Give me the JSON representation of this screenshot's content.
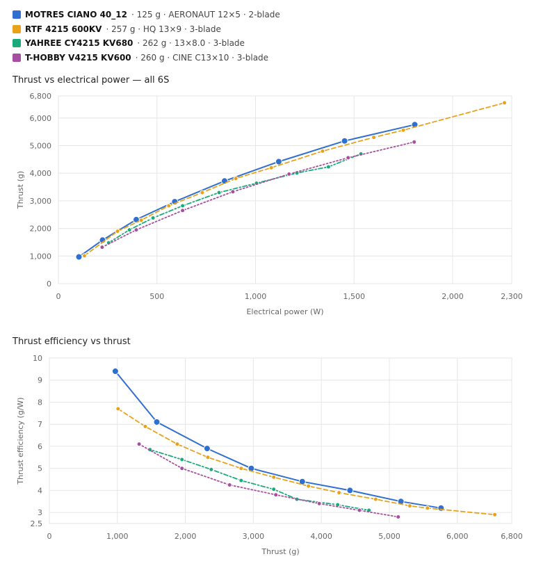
{
  "legend": [
    {
      "name": "MOTRES CIANO 40_12",
      "desc": "· 125 g · AERONAUT 12×5 · 2-blade",
      "color": "#2f6fcf",
      "dash": "solid"
    },
    {
      "name": "RTF 4215 600KV",
      "desc": "· 257 g · HQ 13×9 · 3-blade",
      "color": "#e8a21a",
      "dash": "dashed"
    },
    {
      "name": "YAHREE CY4215 KV680",
      "desc": "· 262 g · 13×8.0 · 3-blade",
      "color": "#1bab7a",
      "dash": "dash-dot"
    },
    {
      "name": "T-HOBBY V4215 KV600",
      "desc": "· 260 g · CINE C13×10 · 3-blade",
      "color": "#a64fa0",
      "dash": "dotted"
    }
  ],
  "chart_data": [
    {
      "type": "line",
      "title": "Thrust vs electrical power — all 6S",
      "xlabel": "Electrical power (W)",
      "ylabel": "Thrust (g)",
      "xlim": [
        0,
        2300
      ],
      "ylim": [
        0,
        6800
      ],
      "xticks": [
        0,
        500,
        1000,
        1500,
        2000,
        2300
      ],
      "xtick_labels": [
        "0",
        "500",
        "1,000",
        "1,500",
        "2,000",
        "2,300"
      ],
      "yticks": [
        0,
        1000,
        2000,
        3000,
        4000,
        5000,
        6000,
        6800
      ],
      "ytick_labels": [
        "0",
        "1,000",
        "2,000",
        "3,000",
        "4,000",
        "5,000",
        "6,000",
        "6,800"
      ],
      "grid": true,
      "series": [
        {
          "name": "MOTRES CIANO 40_12",
          "x": [
            104,
            224,
            395,
            590,
            843,
            1118,
            1452,
            1808
          ],
          "y": [
            970,
            1580,
            2320,
            2970,
            3720,
            4420,
            5170,
            5760
          ]
        },
        {
          "name": "RTF 4215 600KV",
          "x": [
            132,
            300,
            420,
            560,
            730,
            900,
            1080,
            1340,
            1600,
            1750,
            2263
          ],
          "y": [
            1010,
            1900,
            2300,
            2820,
            3300,
            3810,
            4200,
            4800,
            5300,
            5560,
            6550
          ]
        },
        {
          "name": "YAHREE CY4215 KV680",
          "x": [
            255,
            360,
            480,
            630,
            815,
            1005,
            1210,
            1370,
            1535
          ],
          "y": [
            1480,
            1950,
            2380,
            2820,
            3300,
            3640,
            4010,
            4230,
            4700
          ]
        },
        {
          "name": "T-HOBBY V4215 KV600",
          "x": [
            222,
            395,
            630,
            885,
            1170,
            1470,
            1805
          ],
          "y": [
            1320,
            1950,
            2650,
            3330,
            3970,
            4560,
            5130
          ]
        }
      ]
    },
    {
      "type": "line",
      "title": "Thrust efficiency vs thrust",
      "xlabel": "Thrust (g)",
      "ylabel": "Thrust efficiency (g/W)",
      "xlim": [
        0,
        6800
      ],
      "ylim": [
        2.5,
        10
      ],
      "xticks": [
        0,
        1000,
        2000,
        3000,
        4000,
        5000,
        6000,
        6800
      ],
      "xtick_labels": [
        "0",
        "1,000",
        "2,000",
        "3,000",
        "4,000",
        "5,000",
        "6,000",
        "6,800"
      ],
      "yticks": [
        2.5,
        3,
        4,
        5,
        6,
        7,
        8,
        9,
        10
      ],
      "ytick_labels": [
        "2.5",
        "3",
        "4",
        "5",
        "6",
        "7",
        "8",
        "9",
        "10"
      ],
      "grid": true,
      "series": [
        {
          "name": "MOTRES CIANO 40_12",
          "x": [
            970,
            1580,
            2320,
            2970,
            3720,
            4420,
            5170,
            5760
          ],
          "y": [
            9.4,
            7.1,
            5.9,
            5.0,
            4.4,
            4.0,
            3.5,
            3.2
          ]
        },
        {
          "name": "RTF 4215 600KV",
          "x": [
            1010,
            1410,
            1880,
            2330,
            2820,
            3300,
            3810,
            4260,
            4800,
            5300,
            5560,
            6550
          ],
          "y": [
            7.7,
            6.9,
            6.1,
            5.5,
            5.0,
            4.6,
            4.2,
            3.9,
            3.6,
            3.3,
            3.2,
            2.9
          ]
        },
        {
          "name": "YAHREE CY4215 KV680",
          "x": [
            1480,
            1950,
            2380,
            2820,
            3300,
            3640,
            4240,
            4700
          ],
          "y": [
            5.85,
            5.4,
            4.95,
            4.45,
            4.05,
            3.6,
            3.35,
            3.1
          ]
        },
        {
          "name": "T-HOBBY V4215 KV600",
          "x": [
            1320,
            1950,
            2650,
            3330,
            3970,
            4560,
            5130
          ],
          "y": [
            6.1,
            5.0,
            4.25,
            3.8,
            3.4,
            3.1,
            2.8
          ]
        }
      ]
    }
  ]
}
